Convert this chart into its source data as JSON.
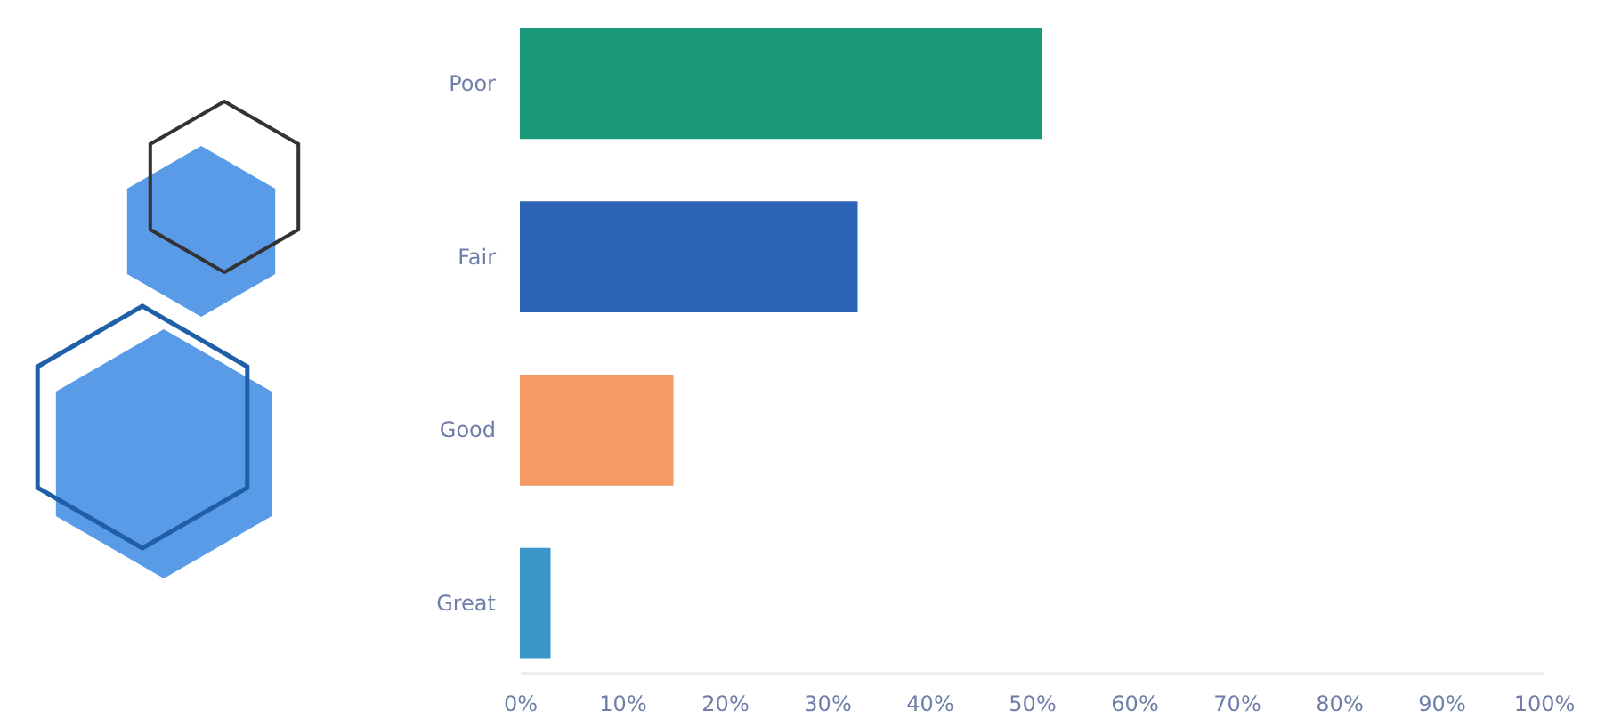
{
  "chart_data": {
    "type": "bar",
    "orientation": "horizontal",
    "categories": [
      "Poor",
      "Fair",
      "Good",
      "Great"
    ],
    "values": [
      51,
      33,
      15,
      3
    ],
    "colors": [
      "#1a9a7a",
      "#2e64b5",
      "#f59a62",
      "#3b97c9"
    ],
    "xlim": [
      0,
      100
    ],
    "xticks": [
      {
        "value": 0,
        "label": "0%"
      },
      {
        "value": 10,
        "label": "10%"
      },
      {
        "value": 20,
        "label": "20%"
      },
      {
        "value": 30,
        "label": "30%"
      },
      {
        "value": 40,
        "label": "40%"
      },
      {
        "value": 50,
        "label": "50%"
      },
      {
        "value": 60,
        "label": "60%"
      },
      {
        "value": 70,
        "label": "70%"
      },
      {
        "value": 80,
        "label": "80%"
      },
      {
        "value": 90,
        "label": "90%"
      },
      {
        "value": 100,
        "label": "100%"
      }
    ],
    "grid": false,
    "legend": false
  }
}
